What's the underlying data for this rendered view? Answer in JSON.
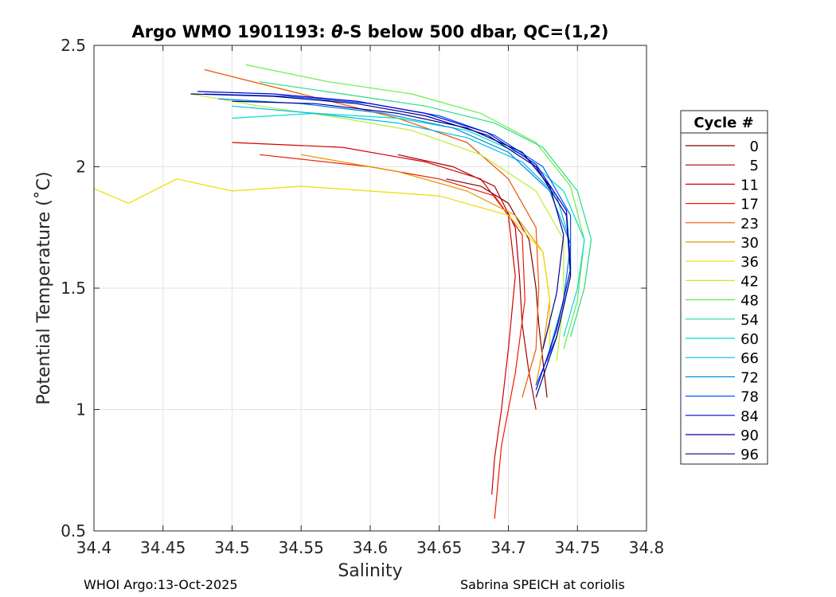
{
  "chart_data": {
    "type": "line",
    "title_prefix": "Argo WMO 1901193: ",
    "title_theta": "θ",
    "title_suffix": "-S below 500 dbar,  QC=(1,2)",
    "xlabel": "Salinity",
    "ylabel": "Potential Temperature (˚C)",
    "xlim": [
      34.4,
      34.8
    ],
    "ylim": [
      0.5,
      2.5
    ],
    "xticks": [
      "34.4",
      "34.45",
      "34.5",
      "34.55",
      "34.6",
      "34.65",
      "34.7",
      "34.75",
      "34.8"
    ],
    "yticks": [
      "0.5",
      "1",
      "1.5",
      "2",
      "2.5"
    ],
    "grid": true,
    "legend_title": "Cycle #",
    "legend_position": "right",
    "legend": [
      {
        "label": "0",
        "color": "#800000"
      },
      {
        "label": "5",
        "color": "#a60000"
      },
      {
        "label": "11",
        "color": "#d40000"
      },
      {
        "label": "17",
        "color": "#ee1a00"
      },
      {
        "label": "23",
        "color": "#ee5500"
      },
      {
        "label": "30",
        "color": "#e69500"
      },
      {
        "label": "36",
        "color": "#eedd00"
      },
      {
        "label": "42",
        "color": "#bbee33"
      },
      {
        "label": "48",
        "color": "#66ee44"
      },
      {
        "label": "54",
        "color": "#22dd88"
      },
      {
        "label": "60",
        "color": "#00ddcc"
      },
      {
        "label": "66",
        "color": "#00bbee"
      },
      {
        "label": "72",
        "color": "#0088dd"
      },
      {
        "label": "78",
        "color": "#0055ee"
      },
      {
        "label": "84",
        "color": "#0000dd"
      },
      {
        "label": "90",
        "color": "#000099"
      },
      {
        "label": "96",
        "color": "#000080"
      }
    ],
    "series": [
      {
        "name": "0",
        "color": "#800000",
        "x": [
          34.655,
          34.68,
          34.7,
          34.715,
          34.72,
          34.722,
          34.725,
          34.728
        ],
        "y": [
          1.95,
          1.92,
          1.85,
          1.7,
          1.5,
          1.35,
          1.2,
          1.05
        ]
      },
      {
        "name": "5",
        "color": "#a60000",
        "x": [
          34.62,
          34.66,
          34.69,
          34.705,
          34.708,
          34.71,
          34.715,
          34.72
        ],
        "y": [
          2.05,
          2.0,
          1.92,
          1.75,
          1.55,
          1.35,
          1.15,
          1.0
        ]
      },
      {
        "name": "11",
        "color": "#d40000",
        "x": [
          34.5,
          34.58,
          34.64,
          34.68,
          34.7,
          34.705,
          34.7,
          34.695,
          34.69,
          34.688
        ],
        "y": [
          2.1,
          2.08,
          2.02,
          1.95,
          1.8,
          1.55,
          1.25,
          1.0,
          0.8,
          0.65
        ]
      },
      {
        "name": "17",
        "color": "#ee1a00",
        "x": [
          34.52,
          34.6,
          34.65,
          34.69,
          34.71,
          34.712,
          34.705,
          34.695,
          34.69
        ],
        "y": [
          2.05,
          2.0,
          1.95,
          1.88,
          1.72,
          1.45,
          1.15,
          0.85,
          0.55
        ]
      },
      {
        "name": "23",
        "color": "#ee5500",
        "x": [
          34.48,
          34.55,
          34.62,
          34.67,
          34.7,
          34.72,
          34.722,
          34.72,
          34.71
        ],
        "y": [
          2.4,
          2.3,
          2.2,
          2.1,
          1.95,
          1.75,
          1.5,
          1.25,
          1.05
        ]
      },
      {
        "name": "30",
        "color": "#e69500",
        "x": [
          34.55,
          34.62,
          34.67,
          34.705,
          34.725,
          34.73,
          34.725,
          34.72
        ],
        "y": [
          2.05,
          1.98,
          1.9,
          1.8,
          1.65,
          1.45,
          1.25,
          1.1
        ]
      },
      {
        "name": "36",
        "color": "#eedd00",
        "x": [
          34.4,
          34.425,
          34.46,
          34.5,
          34.55,
          34.6,
          34.65,
          34.7,
          34.725,
          34.73,
          34.73
        ],
        "y": [
          1.91,
          1.85,
          1.95,
          1.9,
          1.92,
          1.9,
          1.88,
          1.8,
          1.65,
          1.45,
          1.25
        ]
      },
      {
        "name": "42",
        "color": "#bbee33",
        "x": [
          34.47,
          34.52,
          34.58,
          34.63,
          34.68,
          34.72,
          34.74,
          34.74,
          34.735
        ],
        "y": [
          2.3,
          2.25,
          2.2,
          2.15,
          2.05,
          1.9,
          1.7,
          1.45,
          1.2
        ]
      },
      {
        "name": "48",
        "color": "#66ee44",
        "x": [
          34.51,
          34.57,
          34.63,
          34.68,
          34.72,
          34.745,
          34.755,
          34.75,
          34.74
        ],
        "y": [
          2.42,
          2.35,
          2.3,
          2.22,
          2.1,
          1.92,
          1.7,
          1.45,
          1.25
        ]
      },
      {
        "name": "54",
        "color": "#22dd88",
        "x": [
          34.52,
          34.58,
          34.64,
          34.69,
          34.725,
          34.75,
          34.76,
          34.755,
          34.745
        ],
        "y": [
          2.35,
          2.3,
          2.25,
          2.18,
          2.08,
          1.9,
          1.7,
          1.5,
          1.3
        ]
      },
      {
        "name": "60",
        "color": "#00ddcc",
        "x": [
          34.5,
          34.56,
          34.62,
          34.67,
          34.71,
          34.74,
          34.755,
          34.75,
          34.74
        ],
        "y": [
          2.2,
          2.22,
          2.2,
          2.15,
          2.05,
          1.9,
          1.7,
          1.5,
          1.3
        ]
      },
      {
        "name": "66",
        "color": "#00bbee",
        "x": [
          34.5,
          34.56,
          34.62,
          34.67,
          34.71,
          34.735,
          34.745,
          34.74,
          34.73
        ],
        "y": [
          2.25,
          2.22,
          2.18,
          2.12,
          2.02,
          1.88,
          1.68,
          1.45,
          1.25
        ]
      },
      {
        "name": "72",
        "color": "#0088dd",
        "x": [
          34.49,
          34.55,
          34.61,
          34.66,
          34.7,
          34.73,
          34.745,
          34.74,
          34.728
        ],
        "y": [
          2.28,
          2.26,
          2.22,
          2.16,
          2.06,
          1.9,
          1.68,
          1.45,
          1.2
        ]
      },
      {
        "name": "78",
        "color": "#0055ee",
        "x": [
          34.48,
          34.54,
          34.6,
          34.65,
          34.69,
          34.725,
          34.745,
          34.745,
          34.735,
          34.72
        ],
        "y": [
          2.3,
          2.29,
          2.26,
          2.21,
          2.13,
          2.0,
          1.8,
          1.55,
          1.3,
          1.1
        ]
      },
      {
        "name": "84",
        "color": "#0000dd",
        "x": [
          34.475,
          34.53,
          34.59,
          34.64,
          34.685,
          34.72,
          34.742,
          34.745,
          34.735,
          34.72
        ],
        "y": [
          2.31,
          2.3,
          2.27,
          2.22,
          2.14,
          2.01,
          1.82,
          1.58,
          1.33,
          1.08
        ]
      },
      {
        "name": "90",
        "color": "#000099",
        "x": [
          34.5,
          34.56,
          34.62,
          34.67,
          34.71,
          34.73,
          34.74,
          34.735,
          34.725
        ],
        "y": [
          2.27,
          2.26,
          2.22,
          2.16,
          2.06,
          1.92,
          1.72,
          1.48,
          1.25
        ]
      },
      {
        "name": "96",
        "color": "#000080",
        "x": [
          34.47,
          34.53,
          34.59,
          34.64,
          34.685,
          34.72,
          34.742,
          34.745,
          34.735,
          34.72
        ],
        "y": [
          2.3,
          2.29,
          2.26,
          2.21,
          2.13,
          2.0,
          1.8,
          1.55,
          1.3,
          1.05
        ]
      }
    ]
  },
  "footer": {
    "left": "WHOI Argo:13-Oct-2025",
    "right": "Sabrina SPEICH at coriolis"
  }
}
